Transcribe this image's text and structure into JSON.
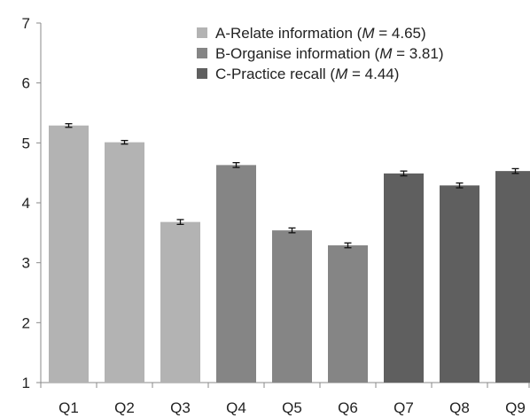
{
  "chart_data": {
    "type": "bar",
    "categories": [
      "Q1",
      "Q2",
      "Q3",
      "Q4",
      "Q5",
      "Q6",
      "Q7",
      "Q8",
      "Q9"
    ],
    "values": [
      5.29,
      5.01,
      3.68,
      4.63,
      3.54,
      3.29,
      4.49,
      4.29,
      4.53
    ],
    "errors": [
      0.03,
      0.03,
      0.04,
      0.04,
      0.04,
      0.04,
      0.04,
      0.04,
      0.04
    ],
    "groups": [
      0,
      0,
      0,
      1,
      1,
      1,
      2,
      2,
      2
    ],
    "series": [
      {
        "prefix": "A-Relate information (",
        "stat": "M",
        "suffix": " = 4.65)",
        "color": "#b3b3b3"
      },
      {
        "prefix": "B-Organise information (",
        "stat": "M",
        "suffix": " = 3.81)",
        "color": "#858585"
      },
      {
        "prefix": "C-Practice recall (",
        "stat": "M",
        "suffix": " = 4.44)",
        "color": "#5f5f5f"
      }
    ],
    "ylim": [
      1,
      7
    ],
    "yticks": [
      1,
      2,
      3,
      4,
      5,
      6,
      7
    ],
    "grid": false,
    "legend_position": "top-right",
    "title": "",
    "xlabel": "",
    "ylabel": ""
  }
}
